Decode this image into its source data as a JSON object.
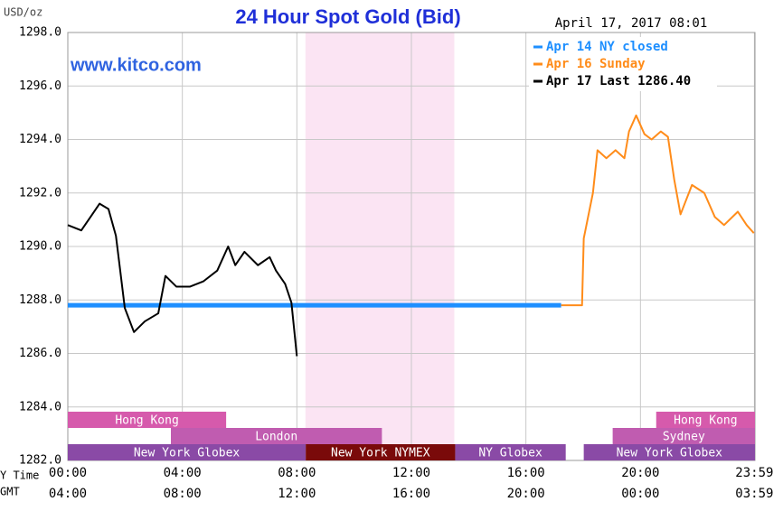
{
  "chart_data": {
    "type": "line",
    "title": "24 Hour Spot Gold (Bid)",
    "timestamp": "April 17, 2017 08:01",
    "ylabel": "USD/oz",
    "watermark": "www.kitco.com",
    "xlabel": "Y Time",
    "x2label": "GMT",
    "xlim": [
      0,
      24
    ],
    "ylim": [
      1282,
      1298
    ],
    "yticks": [
      {
        "value": 1282,
        "label": "1282.0"
      },
      {
        "value": 1284,
        "label": "1284.0"
      },
      {
        "value": 1286,
        "label": "1286.0"
      },
      {
        "value": 1288,
        "label": "1288.0"
      },
      {
        "value": 1290,
        "label": "1290.0"
      },
      {
        "value": 1292,
        "label": "1292.0"
      },
      {
        "value": 1294,
        "label": "1294.0"
      },
      {
        "value": 1296,
        "label": "1296.0"
      },
      {
        "value": 1298,
        "label": "1298.0"
      }
    ],
    "xticks": [
      {
        "value": 0,
        "label": "00:00"
      },
      {
        "value": 4,
        "label": "04:00"
      },
      {
        "value": 8,
        "label": "08:00"
      },
      {
        "value": 12,
        "label": "12:00"
      },
      {
        "value": 16,
        "label": "16:00"
      },
      {
        "value": 20,
        "label": "20:00"
      },
      {
        "value": 23.98,
        "label": "23:59"
      }
    ],
    "x2ticks": [
      {
        "value": 0,
        "label": "04:00"
      },
      {
        "value": 4,
        "label": "08:00"
      },
      {
        "value": 8,
        "label": "12:00"
      },
      {
        "value": 12,
        "label": "16:00"
      },
      {
        "value": 16,
        "label": "20:00"
      },
      {
        "value": 20,
        "label": "00:00"
      },
      {
        "value": 23.98,
        "label": "03:59"
      }
    ],
    "grid": true,
    "highlight_range": [
      8.3,
      13.5
    ],
    "highlight_color": "#fbe4f3",
    "series": [
      {
        "name": "Apr 14 NY closed",
        "color": "#1e8fff",
        "width": 5,
        "x": [
          0,
          17.23
        ],
        "values": [
          1287.8,
          1287.8
        ]
      },
      {
        "name": "Apr 16 Sunday",
        "color": "#ff8c1a",
        "width": 2,
        "x": [
          17.23,
          17.96,
          18.02,
          18.34,
          18.5,
          18.81,
          19.13,
          19.44,
          19.6,
          19.85,
          20.14,
          20.39,
          20.71,
          20.96,
          21.18,
          21.4,
          21.8,
          22.23,
          22.6,
          22.92,
          23.4,
          23.71,
          23.96
        ],
        "values": [
          1287.8,
          1287.8,
          1290.3,
          1292.0,
          1293.6,
          1293.3,
          1293.6,
          1293.3,
          1294.3,
          1294.9,
          1294.2,
          1294.0,
          1294.3,
          1294.1,
          1292.5,
          1291.2,
          1292.3,
          1292.0,
          1291.1,
          1290.8,
          1291.3,
          1290.8,
          1290.5
        ]
      },
      {
        "name": "Apr 17 Last 1286.40",
        "color": "#000000",
        "width": 2,
        "x": [
          0,
          0.47,
          0.79,
          1.11,
          1.42,
          1.68,
          1.83,
          1.99,
          2.31,
          2.69,
          3.16,
          3.41,
          3.79,
          4.27,
          4.74,
          5.22,
          5.6,
          5.85,
          6.17,
          6.64,
          7.05,
          7.27,
          7.59,
          7.81,
          8.0
        ],
        "values": [
          1290.8,
          1290.6,
          1291.1,
          1291.6,
          1291.4,
          1290.4,
          1289.1,
          1287.7,
          1286.8,
          1287.2,
          1287.5,
          1288.9,
          1288.5,
          1288.5,
          1288.7,
          1289.1,
          1290.0,
          1289.3,
          1289.8,
          1289.3,
          1289.6,
          1289.1,
          1288.6,
          1287.9,
          1285.9
        ]
      }
    ],
    "sessions": [
      {
        "name": "Hong Kong",
        "start": 0,
        "end": 5.53,
        "row": 0,
        "color": "#d65aac"
      },
      {
        "name": "London",
        "start": 3.6,
        "end": 10.97,
        "row": 1,
        "color": "#c05cb0"
      },
      {
        "name": "New York Globex",
        "start": 0,
        "end": 8.31,
        "row": 2,
        "color": "#8a4aa6"
      },
      {
        "name": "New York NYMEX",
        "start": 8.31,
        "end": 13.53,
        "row": 2,
        "color": "#7a0a0a"
      },
      {
        "name": "NY Globex",
        "start": 13.53,
        "end": 17.39,
        "row": 2,
        "color": "#8a4aa6"
      },
      {
        "name": "New York Globex",
        "start": 18.02,
        "end": 24,
        "row": 2,
        "color": "#8a4aa6"
      },
      {
        "name": "Sydney",
        "start": 19.03,
        "end": 24,
        "row": 1,
        "color": "#c05cb0"
      },
      {
        "name": "Hong Kong",
        "start": 20.55,
        "end": 24,
        "row": 0,
        "color": "#d65aac"
      }
    ]
  }
}
